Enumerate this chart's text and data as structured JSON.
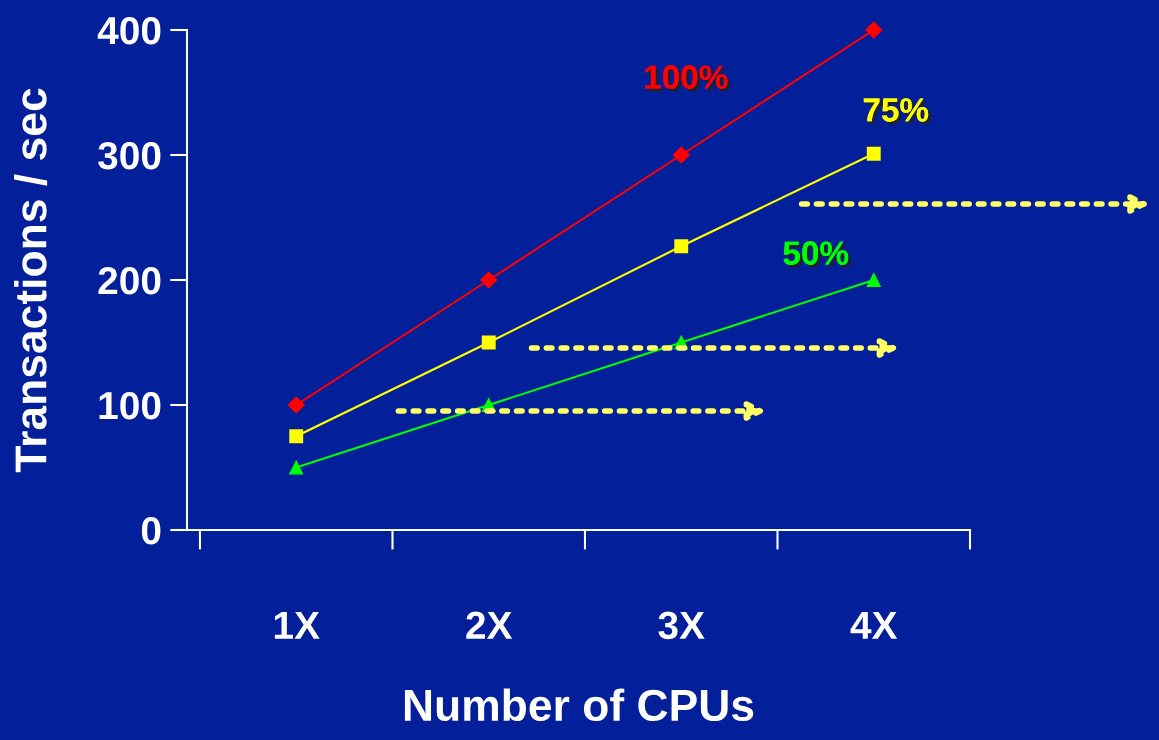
{
  "chart_data": {
    "type": "line",
    "xlabel": "Number of CPUs",
    "ylabel": "Transactions / sec",
    "categories": [
      "1X",
      "2X",
      "3X",
      "4X"
    ],
    "series": [
      {
        "name": "100%",
        "color": "#ff0000",
        "marker": "diamond",
        "values": [
          100,
          200,
          300,
          400
        ]
      },
      {
        "name": "75%",
        "color": "#ffff00",
        "marker": "square",
        "values": [
          75,
          150,
          227,
          301
        ]
      },
      {
        "name": "50%",
        "color": "#00ff00",
        "marker": "triangle",
        "values": [
          50,
          100,
          150,
          200
        ]
      }
    ],
    "ylim": [
      0,
      400
    ],
    "yticks": [
      0,
      100,
      200,
      300,
      400
    ],
    "grid": false,
    "legend": false,
    "line_style": "solid"
  }
}
